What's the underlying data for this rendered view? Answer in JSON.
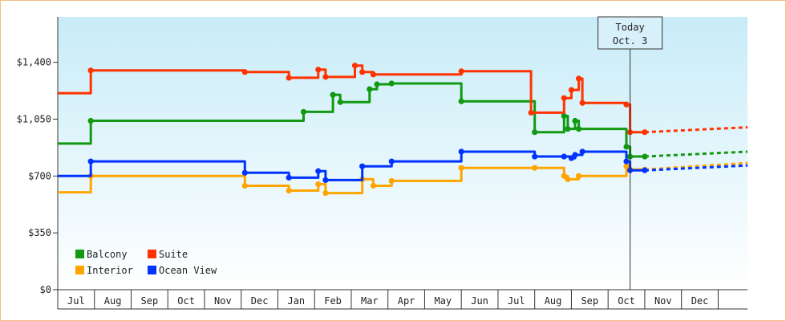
{
  "chart_data": {
    "type": "line",
    "title": "",
    "xlabel": "",
    "ylabel": "",
    "ylim": [
      0,
      1680
    ],
    "xlim": [
      -0.5,
      18.3
    ],
    "y_ticks": [
      {
        "value": 0,
        "label": "$0"
      },
      {
        "value": 350,
        "label": "$350"
      },
      {
        "value": 700,
        "label": "$700"
      },
      {
        "value": 1050,
        "label": "$1,050"
      },
      {
        "value": 1400,
        "label": "$1,400"
      }
    ],
    "x_months": [
      "Jul",
      "Aug",
      "Sep",
      "Oct",
      "Nov",
      "Dec",
      "Jan",
      "Feb",
      "Mar",
      "Apr",
      "May",
      "Jun",
      "Jul",
      "Aug",
      "Sep",
      "Oct",
      "Nov",
      "Dec"
    ],
    "today": {
      "line1": "Today",
      "line2": "Oct. 3",
      "x": 15.1
    },
    "legend": [
      {
        "name": "Balcony",
        "color": "#119911"
      },
      {
        "name": "Suite",
        "color": "#ff3300"
      },
      {
        "name": "Interior",
        "color": "#ffa500"
      },
      {
        "name": "Ocean View",
        "color": "#0033ff"
      }
    ],
    "series": [
      {
        "name": "Balcony",
        "color": "#119911",
        "points": [
          [
            -0.5,
            900
          ],
          [
            0.4,
            900
          ],
          [
            0.4,
            1040
          ],
          [
            6.2,
            1040
          ],
          [
            6.2,
            1095
          ],
          [
            7.0,
            1095
          ],
          [
            7.0,
            1200
          ],
          [
            7.2,
            1200
          ],
          [
            7.2,
            1155
          ],
          [
            8.0,
            1155
          ],
          [
            8.0,
            1235
          ],
          [
            8.2,
            1235
          ],
          [
            8.2,
            1265
          ],
          [
            8.6,
            1265
          ],
          [
            8.6,
            1270
          ],
          [
            10.5,
            1270
          ],
          [
            10.5,
            1160
          ],
          [
            12.5,
            1160
          ],
          [
            12.5,
            970
          ],
          [
            13.3,
            970
          ],
          [
            13.3,
            1070
          ],
          [
            13.4,
            1070
          ],
          [
            13.4,
            990
          ],
          [
            13.6,
            990
          ],
          [
            13.6,
            1040
          ],
          [
            13.7,
            1040
          ],
          [
            13.7,
            990
          ],
          [
            15.0,
            990
          ],
          [
            15.0,
            880
          ],
          [
            15.1,
            880
          ],
          [
            15.1,
            820
          ],
          [
            15.5,
            820
          ]
        ],
        "projection": [
          [
            15.5,
            820
          ],
          [
            18.3,
            850
          ]
        ]
      },
      {
        "name": "Suite",
        "color": "#ff3300",
        "points": [
          [
            -0.5,
            1210
          ],
          [
            0.4,
            1210
          ],
          [
            0.4,
            1350
          ],
          [
            4.6,
            1350
          ],
          [
            4.6,
            1340
          ],
          [
            5.8,
            1340
          ],
          [
            5.8,
            1305
          ],
          [
            6.6,
            1305
          ],
          [
            6.6,
            1355
          ],
          [
            6.8,
            1355
          ],
          [
            6.8,
            1310
          ],
          [
            7.6,
            1310
          ],
          [
            7.6,
            1380
          ],
          [
            7.8,
            1380
          ],
          [
            7.8,
            1340
          ],
          [
            8.1,
            1340
          ],
          [
            8.1,
            1325
          ],
          [
            10.5,
            1325
          ],
          [
            10.5,
            1345
          ],
          [
            12.4,
            1345
          ],
          [
            12.4,
            1090
          ],
          [
            13.3,
            1090
          ],
          [
            13.3,
            1180
          ],
          [
            13.5,
            1180
          ],
          [
            13.5,
            1230
          ],
          [
            13.7,
            1230
          ],
          [
            13.7,
            1300
          ],
          [
            13.8,
            1300
          ],
          [
            13.8,
            1150
          ],
          [
            15.0,
            1150
          ],
          [
            15.0,
            1140
          ],
          [
            15.1,
            1140
          ],
          [
            15.1,
            970
          ],
          [
            15.5,
            970
          ]
        ],
        "projection": [
          [
            15.5,
            970
          ],
          [
            18.3,
            1000
          ]
        ]
      },
      {
        "name": "Interior",
        "color": "#ffa500",
        "points": [
          [
            -0.5,
            600
          ],
          [
            0.4,
            600
          ],
          [
            0.4,
            700
          ],
          [
            4.6,
            700
          ],
          [
            4.6,
            640
          ],
          [
            5.8,
            640
          ],
          [
            5.8,
            610
          ],
          [
            6.6,
            610
          ],
          [
            6.6,
            650
          ],
          [
            6.8,
            650
          ],
          [
            6.8,
            595
          ],
          [
            7.8,
            595
          ],
          [
            7.8,
            680
          ],
          [
            8.1,
            680
          ],
          [
            8.1,
            640
          ],
          [
            8.6,
            640
          ],
          [
            8.6,
            670
          ],
          [
            10.5,
            670
          ],
          [
            10.5,
            750
          ],
          [
            12.5,
            750
          ],
          [
            12.5,
            750
          ],
          [
            13.3,
            750
          ],
          [
            13.3,
            700
          ],
          [
            13.4,
            700
          ],
          [
            13.4,
            680
          ],
          [
            13.7,
            680
          ],
          [
            13.7,
            700
          ],
          [
            15.0,
            700
          ],
          [
            15.0,
            760
          ],
          [
            15.1,
            760
          ],
          [
            15.1,
            740
          ],
          [
            15.5,
            740
          ]
        ],
        "projection": [
          [
            15.5,
            740
          ],
          [
            18.3,
            780
          ]
        ]
      },
      {
        "name": "Ocean View",
        "color": "#0033ff",
        "points": [
          [
            -0.5,
            700
          ],
          [
            0.4,
            700
          ],
          [
            0.4,
            790
          ],
          [
            4.6,
            790
          ],
          [
            4.6,
            720
          ],
          [
            5.8,
            720
          ],
          [
            5.8,
            690
          ],
          [
            6.6,
            690
          ],
          [
            6.6,
            730
          ],
          [
            6.8,
            730
          ],
          [
            6.8,
            675
          ],
          [
            7.8,
            675
          ],
          [
            7.8,
            760
          ],
          [
            8.6,
            760
          ],
          [
            8.6,
            790
          ],
          [
            10.5,
            790
          ],
          [
            10.5,
            850
          ],
          [
            12.5,
            850
          ],
          [
            12.5,
            820
          ],
          [
            13.3,
            820
          ],
          [
            13.3,
            820
          ],
          [
            13.5,
            820
          ],
          [
            13.5,
            810
          ],
          [
            13.6,
            810
          ],
          [
            13.6,
            830
          ],
          [
            13.8,
            830
          ],
          [
            13.8,
            850
          ],
          [
            15.0,
            850
          ],
          [
            15.0,
            790
          ],
          [
            15.1,
            790
          ],
          [
            15.1,
            735
          ],
          [
            15.5,
            735
          ]
        ],
        "projection": [
          [
            15.5,
            735
          ],
          [
            18.3,
            765
          ]
        ]
      }
    ]
  }
}
